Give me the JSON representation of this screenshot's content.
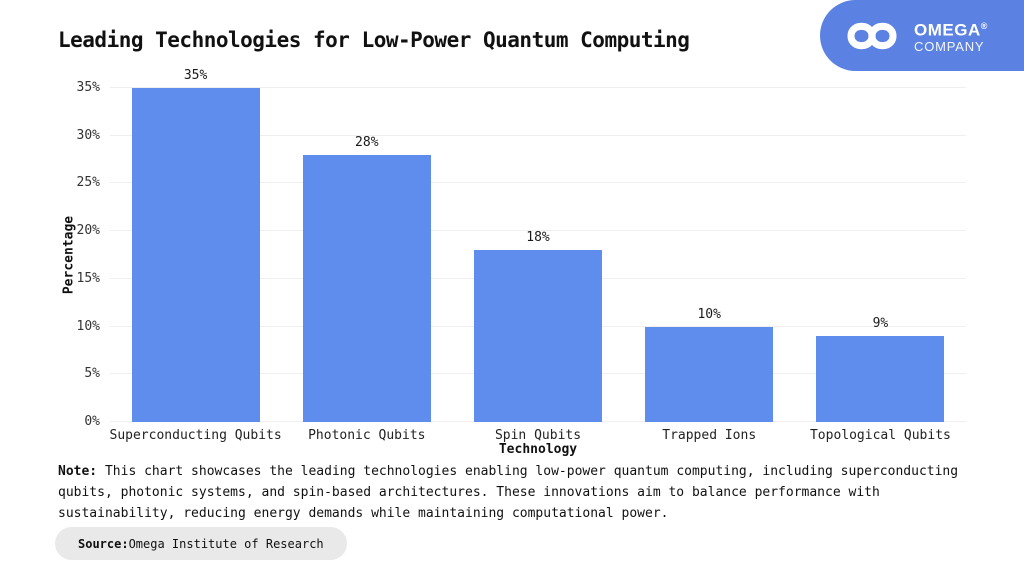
{
  "title": "Leading Technologies for Low-Power Quantum Computing",
  "logo": {
    "name": "OMEGA",
    "reg": "®",
    "subname": "COMPANY",
    "bg_color": "#5B82E3",
    "icon": "infinity-icon"
  },
  "chart_data": {
    "type": "bar",
    "categories": [
      "Superconducting Qubits",
      "Photonic Qubits",
      "Spin Qubits",
      "Trapped Ions",
      "Topological Qubits"
    ],
    "values": [
      35,
      28,
      18,
      10,
      9
    ],
    "value_labels": [
      "35%",
      "28%",
      "18%",
      "10%",
      "9%"
    ],
    "title": "Leading Technologies for Low-Power Quantum Computing",
    "xlabel": "Technology",
    "ylabel": "Percentage",
    "ylim": [
      0,
      35
    ],
    "ytick_values": [
      0,
      5,
      10,
      15,
      20,
      25,
      30,
      35
    ],
    "ytick_labels": [
      "0%",
      "5%",
      "10%",
      "15%",
      "20%",
      "25%",
      "30%",
      "35%"
    ],
    "bar_color": "#5F8DED",
    "grid": true,
    "legend": false
  },
  "note": {
    "label": "Note:",
    "text": " This chart showcases the leading technologies enabling low-power quantum computing, including superconducting qubits, photonic systems, and spin-based architectures. These innovations aim to balance performance with sustainability, reducing energy demands while maintaining computational power."
  },
  "source": {
    "label": "Source:",
    "text": " Omega Institute of Research"
  }
}
